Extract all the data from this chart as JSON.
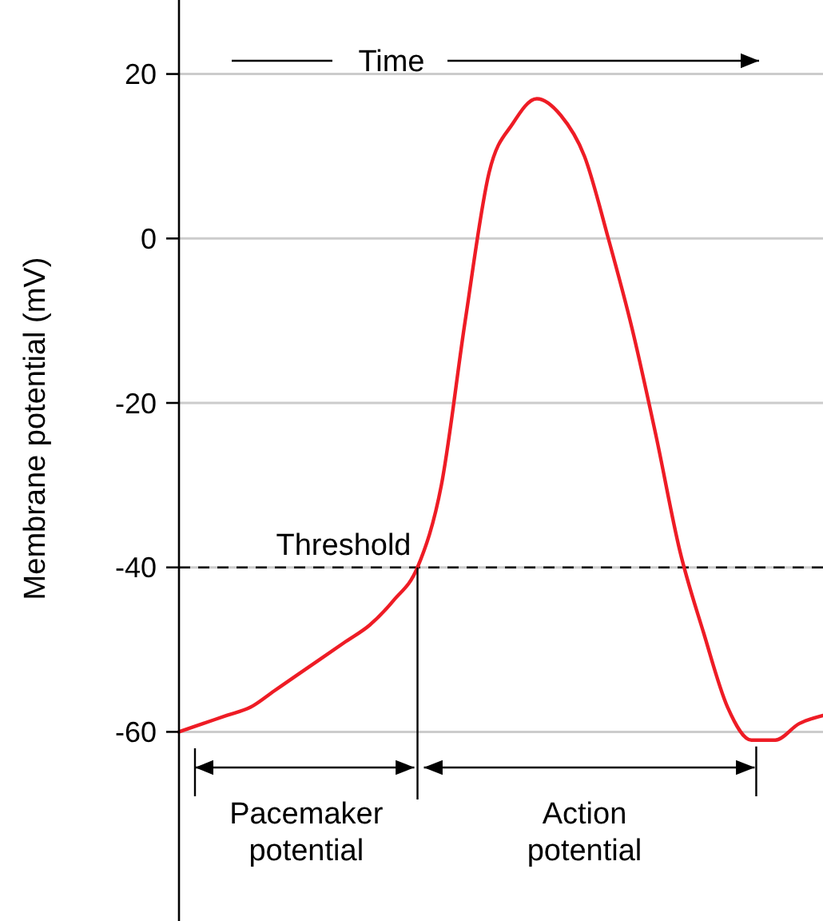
{
  "chart_data": {
    "type": "line",
    "ylabel": "Membrane potential (mV)",
    "categories": [
      null,
      null,
      null,
      null,
      null,
      null,
      null,
      null,
      null,
      null,
      null,
      null,
      null,
      null,
      null,
      null,
      null,
      null,
      null,
      null,
      null,
      null,
      null,
      null,
      null,
      null,
      null,
      null
    ],
    "series": [
      {
        "color": "#ee1c25",
        "values": [
          -60,
          -59,
          -58,
          -57,
          -55,
          -53,
          -51,
          -49,
          -47,
          -44,
          -40,
          -30,
          -10,
          8,
          14,
          17,
          15,
          10,
          0,
          -11,
          -24,
          -38,
          -48,
          -57,
          -61,
          -61,
          -59,
          -58
        ]
      }
    ],
    "ylim": [
      -83,
      29
    ],
    "yticks": [
      -60,
      -40,
      -20,
      0,
      20
    ],
    "grid": "y",
    "marker": "none",
    "line_style": "solid",
    "tick_labels": "y",
    "ref_lines": [
      {
        "axis": "y",
        "value": -40,
        "label": "Threshold",
        "line_style": "dashed",
        "color": "#000000"
      }
    ],
    "annotations": [
      "Time",
      "Pacemaker potential",
      "Action potential"
    ]
  }
}
